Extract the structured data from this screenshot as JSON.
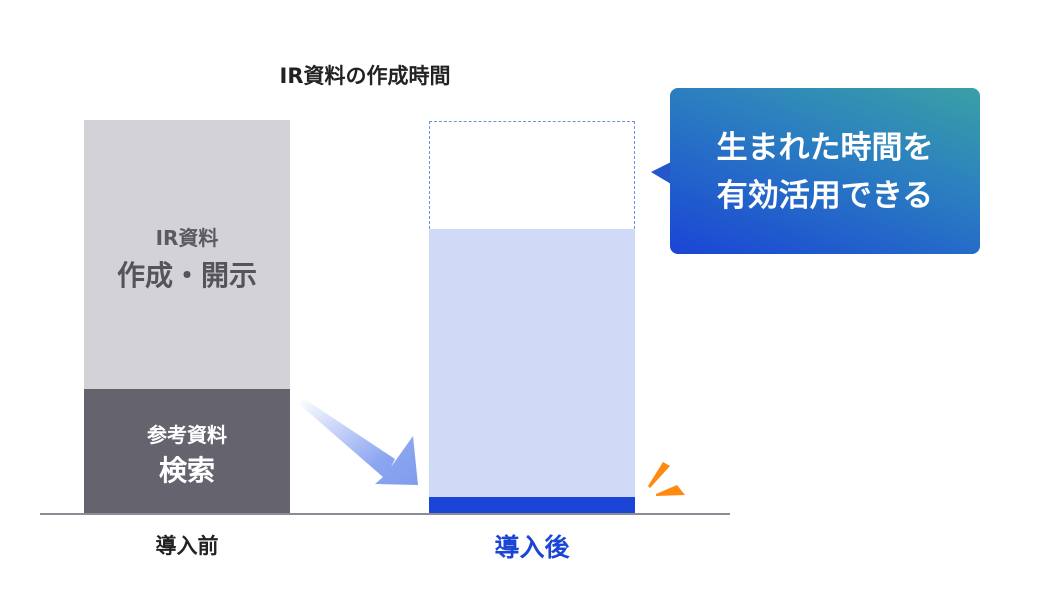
{
  "title": "IR資料の作成時間",
  "before": {
    "label": "導入前",
    "upper_segment": {
      "line1": "IR資料",
      "line2": "作成・開示"
    },
    "lower_segment": {
      "line1": "参考資料",
      "line2": "検索"
    }
  },
  "after": {
    "label": "導入後"
  },
  "callout": {
    "line1": "生まれた時間を",
    "line2": "有効活用できる"
  },
  "colors": {
    "before_upper": "#d3d3d7",
    "before_lower": "#65646e",
    "after_light": "#cfdaf7",
    "after_dark": "#1a45d6",
    "after_label": "#1a45d6",
    "accent": "#ff8a12"
  }
}
